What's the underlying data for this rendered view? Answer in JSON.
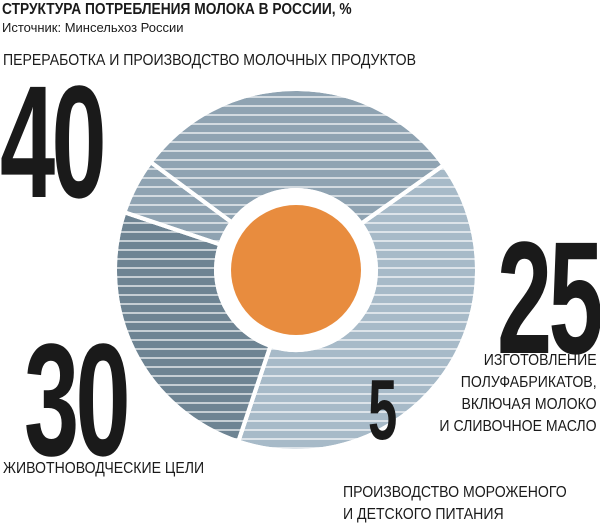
{
  "chart_data": {
    "type": "donut",
    "title": "СТРУКТУРА ПОТРЕБЛЕНИЯ МОЛОКА В РОССИИ, %",
    "subtitle": "Источник: Минсельхоз России",
    "categories": [
      "ПЕРЕРАБОТКА И ПРОИЗВОДСТВО МОЛОЧНЫХ ПРОДУКТОВ",
      "ИЗГОТОВЛЕНИЕ\nПОЛУФАБРИКАТОВ,\nВКЛЮЧАЯ МОЛОКО\nИ СЛИВОЧНОЕ МАСЛО",
      "ПРОИЗВОДСТВО МОРОЖЕНОГО\nИ ДЕТСКОГО ПИТАНИЯ",
      "ЖИВОТНОВОДЧЕСКИЕ ЦЕЛИ"
    ],
    "values": [
      40,
      25,
      5,
      30
    ],
    "colors": [
      "#a7bac8",
      "#6e8493",
      "#8fa3b2",
      "#8fa3b2"
    ],
    "center_color": "#e88c3e"
  }
}
